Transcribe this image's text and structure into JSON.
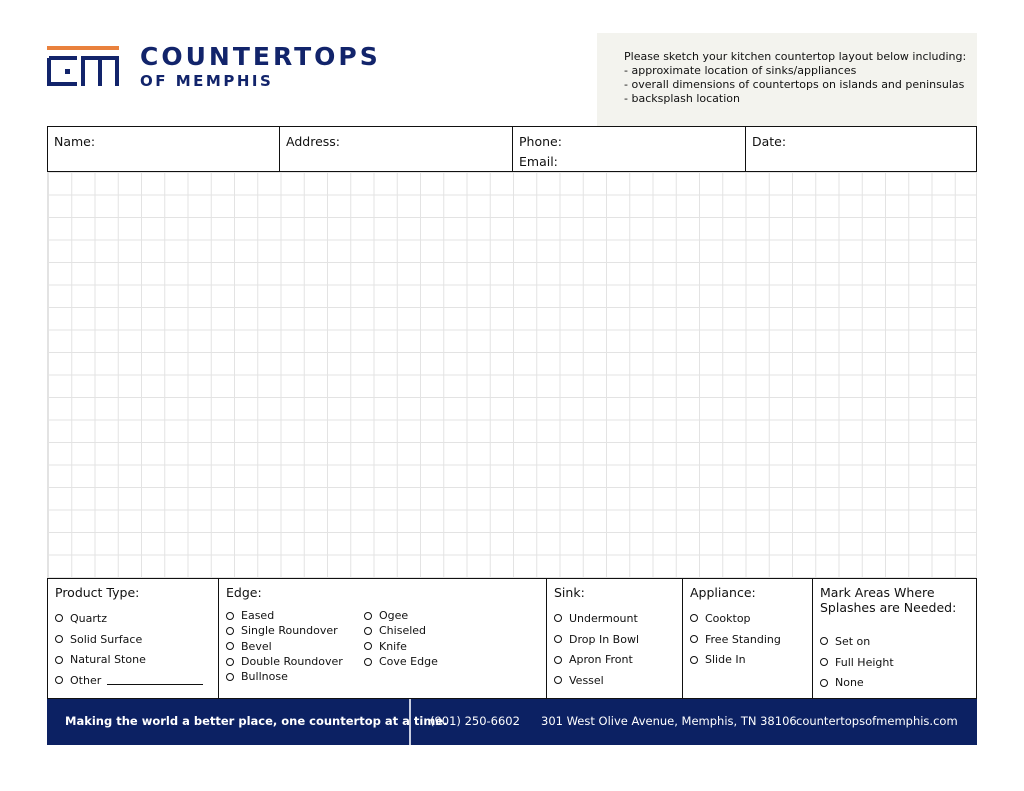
{
  "brand": {
    "name_line1": "COUNTERTOPS",
    "name_line2": "OF MEMPHIS",
    "logo_text": "CM",
    "colors": {
      "navy": "#12246b",
      "orange": "#e9813d",
      "footer": "#0c2163"
    }
  },
  "instructions": {
    "intro": "Please sketch your kitchen countertop layout below including:",
    "items": [
      "- approximate location of sinks/appliances",
      "- overall dimensions of countertops on islands and peninsulas",
      "- backsplash location"
    ]
  },
  "fields": {
    "name": "Name:",
    "address": "Address:",
    "phone": "Phone:",
    "email": "Email:",
    "date": "Date:"
  },
  "product_type": {
    "title": "Product Type:",
    "options": [
      "Quartz",
      "Solid Surface",
      "Natural Stone",
      "Other"
    ]
  },
  "edge": {
    "title": "Edge:",
    "col1": [
      "Eased",
      "Single Roundover",
      "Bevel",
      "Double Roundover",
      "Bullnose"
    ],
    "col2": [
      "Ogee",
      "Chiseled",
      "Knife",
      "Cove Edge"
    ]
  },
  "sink": {
    "title": "Sink:",
    "options": [
      "Undermount",
      "Drop In Bowl",
      "Apron Front",
      "Vessel"
    ]
  },
  "appliance": {
    "title": "Appliance:",
    "options": [
      "Cooktop",
      "Free Standing",
      "Slide In"
    ]
  },
  "splash": {
    "title_line1": "Mark Areas Where",
    "title_line2": "Splashes are Needed:",
    "options": [
      "Set on",
      "Full Height",
      "None"
    ]
  },
  "footer": {
    "tagline": "Making the world a better place, one countertop at a time.",
    "phone": "(901) 250-6602",
    "address": "301 West Olive Avenue, Memphis, TN 38106",
    "website": "countertopsofmemphis.com"
  }
}
